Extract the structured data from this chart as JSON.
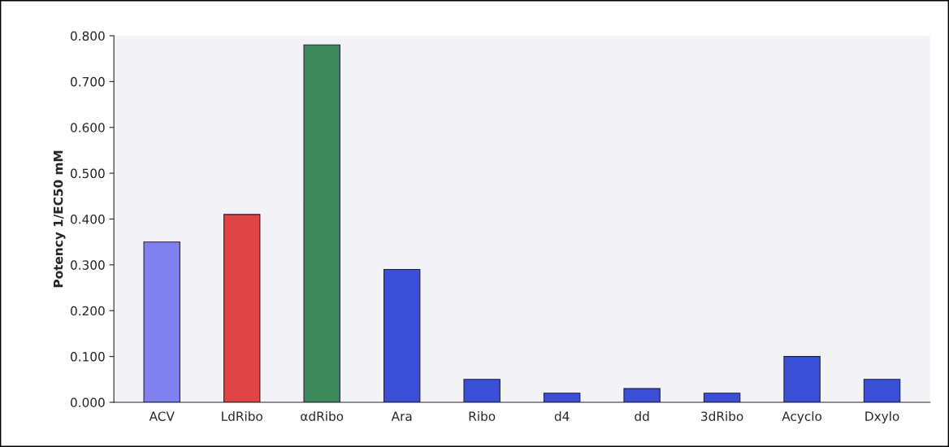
{
  "chart_data": {
    "type": "bar",
    "ylabel": "Potency 1/EC50 mM",
    "categories": [
      "ACV",
      "LdRibo",
      "αdRibo",
      "Ara",
      "Ribo",
      "d4",
      "dd",
      "3dRibo",
      "Acyclo",
      "Dxylo"
    ],
    "values": [
      0.35,
      0.41,
      0.78,
      0.29,
      0.05,
      0.02,
      0.03,
      0.02,
      0.1,
      0.05
    ],
    "colors": [
      "#8080ee",
      "#e04545",
      "#3f8a5c",
      "#3a4fd6",
      "#3a4fd6",
      "#3a4fd6",
      "#3a4fd6",
      "#3a4fd6",
      "#3a4fd6",
      "#3a4fd6"
    ],
    "ylim": [
      0,
      0.8
    ],
    "yticks": [
      {
        "value": 0,
        "label": "0.000"
      },
      {
        "value": 0.1,
        "label": "0.100"
      },
      {
        "value": 0.2,
        "label": "0.200"
      },
      {
        "value": 0.3,
        "label": "0.300"
      },
      {
        "value": 0.4,
        "label": "0.400"
      },
      {
        "value": 0.5,
        "label": "0.500"
      },
      {
        "value": 0.6,
        "label": "0.600"
      },
      {
        "value": 0.7,
        "label": "0.700"
      },
      {
        "value": 0.8,
        "label": "0.800"
      }
    ],
    "grid": false
  }
}
